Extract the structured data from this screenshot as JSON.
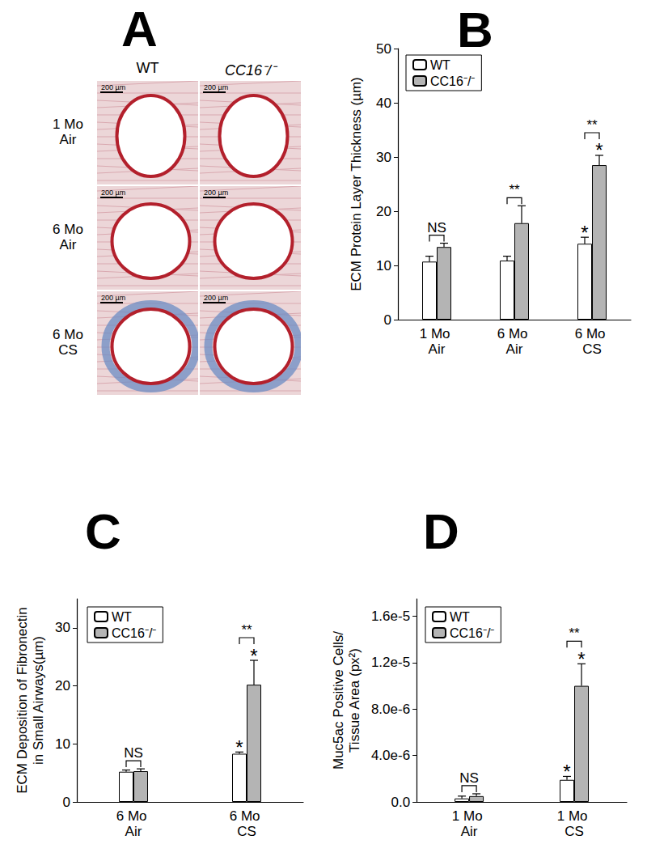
{
  "panel_A": {
    "label": "A",
    "columns": [
      "WT",
      "CC16⁻/⁻"
    ],
    "rows": [
      "1 Mo Air",
      "6 Mo Air",
      "6 Mo CS"
    ],
    "scale_bar": "200 µm"
  },
  "chart_data": [
    {
      "type": "bar",
      "title": "B",
      "ylabel": "ECM Protein Layer Thickness (µm)",
      "categories": [
        "1 Mo Air",
        "6 Mo Air",
        "6 Mo CS"
      ],
      "series": [
        {
          "name": "WT",
          "color": "#ffffff",
          "values": [
            10.7,
            10.9,
            14.0
          ],
          "errors": [
            1.0,
            0.8,
            1.2
          ],
          "marks": [
            null,
            null,
            "*"
          ]
        },
        {
          "name": "CC16⁻/⁻",
          "color": "#b4b4b4",
          "values": [
            13.4,
            17.8,
            28.5
          ],
          "errors": [
            0.7,
            3.2,
            1.8
          ],
          "marks": [
            null,
            null,
            "*"
          ]
        }
      ],
      "brackets": [
        "NS",
        "**",
        "**"
      ],
      "ylim": [
        0,
        50
      ],
      "yticks": [
        0,
        10,
        20,
        30,
        40,
        50
      ],
      "grid": false,
      "legend": "upper left"
    },
    {
      "type": "bar",
      "title": "C",
      "ylabel": "ECM Deposition of Fibronectin\nin Small Airways(µm)",
      "categories": [
        "6 Mo Air",
        "6 Mo CS"
      ],
      "series": [
        {
          "name": "WT",
          "color": "#ffffff",
          "values": [
            5.2,
            8.3
          ],
          "errors": [
            0.3,
            0.3
          ],
          "marks": [
            null,
            "*"
          ]
        },
        {
          "name": "CC16⁻/⁻",
          "color": "#b4b4b4",
          "values": [
            5.3,
            20.2
          ],
          "errors": [
            0.4,
            4.2
          ],
          "marks": [
            null,
            "*"
          ]
        }
      ],
      "brackets": [
        "NS",
        "**"
      ],
      "ylim": [
        0,
        35
      ],
      "yticks": [
        0,
        10,
        20,
        30
      ],
      "grid": false,
      "legend": "upper left"
    },
    {
      "type": "bar",
      "title": "D",
      "ylabel": "Muc5ac Positive Cells/\nTissue Area (px²)",
      "categories": [
        "1 Mo Air",
        "1 Mo CS"
      ],
      "series": [
        {
          "name": "WT",
          "color": "#ffffff",
          "values": [
            3e-07,
            1.9e-06
          ],
          "errors": [
            2e-07,
            3e-07
          ],
          "marks": [
            null,
            "*"
          ]
        },
        {
          "name": "CC16⁻/⁻",
          "color": "#b4b4b4",
          "values": [
            5e-07,
            1e-05
          ],
          "errors": [
            2e-07,
            1.9e-06
          ],
          "marks": [
            null,
            "*"
          ]
        }
      ],
      "brackets": [
        "NS",
        "**"
      ],
      "ylim": [
        0,
        1.75e-05
      ],
      "yticks": [
        {
          "value": 0,
          "label": "0.0"
        },
        {
          "value": 4e-06,
          "label": "4.0e-6"
        },
        {
          "value": 8e-06,
          "label": "8.0e-6"
        },
        {
          "value": 1.2e-05,
          "label": "1.2e-5"
        },
        {
          "value": 1.6e-05,
          "label": "1.6e-5"
        }
      ],
      "grid": false,
      "legend": "upper left"
    }
  ]
}
